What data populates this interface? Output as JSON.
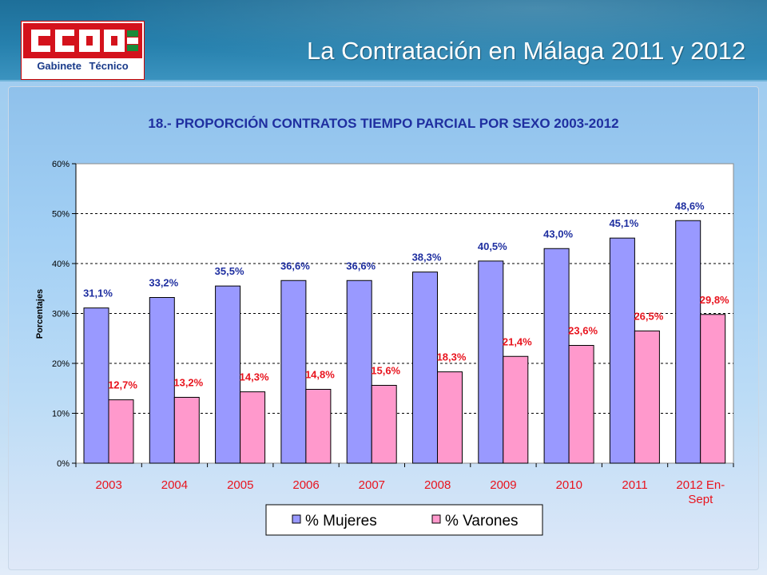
{
  "header": {
    "logo_text": "CCOO",
    "logo_subtitle": "Gabinete   Técnico",
    "title": "La Contratación en Málaga 2011 y 2012"
  },
  "colors": {
    "mujeres": "#9999ff",
    "varones": "#ff99cc",
    "mujeres_label": "#1f2fa0",
    "varones_label": "#e8141e",
    "chart_title": "#1f2fa0",
    "category_label": "#e8141e",
    "logo_red": "#d4121c",
    "logo_green": "#1a8a3a"
  },
  "chart_data": {
    "type": "bar",
    "title": "18.- PROPORCIÓN  CONTRATOS  TIEMPO PARCIAL POR SEXO 2003-2012",
    "ylabel": "Porcentajes",
    "xlabel": "",
    "ylim": [
      0,
      60
    ],
    "yticks": [
      "0%",
      "10%",
      "20%",
      "30%",
      "40%",
      "50%",
      "60%"
    ],
    "grid": true,
    "legend_position": "bottom-center",
    "categories": [
      "2003",
      "2004",
      "2005",
      "2006",
      "2007",
      "2008",
      "2009",
      "2010",
      "2011",
      "2012 En-Sept"
    ],
    "category_lines": [
      [
        "2003"
      ],
      [
        "2004"
      ],
      [
        "2005"
      ],
      [
        "2006"
      ],
      [
        "2007"
      ],
      [
        "2008"
      ],
      [
        "2009"
      ],
      [
        "2010"
      ],
      [
        "2011"
      ],
      [
        "2012 En-",
        "Sept"
      ]
    ],
    "series": [
      {
        "name": "% Mujeres",
        "values": [
          31.1,
          33.2,
          35.5,
          36.6,
          36.6,
          38.3,
          40.5,
          43.0,
          45.1,
          48.6
        ],
        "labels": [
          "31,1%",
          "33,2%",
          "35,5%",
          "36,6%",
          "36,6%",
          "38,3%",
          "40,5%",
          "43,0%",
          "45,1%",
          "48,6%"
        ]
      },
      {
        "name": "% Varones",
        "values": [
          12.7,
          13.2,
          14.3,
          14.8,
          15.6,
          18.3,
          21.4,
          23.6,
          26.5,
          29.8
        ],
        "labels": [
          "12,7%",
          "13,2%",
          "14,3%",
          "14,8%",
          "15,6%",
          "18,3%",
          "21,4%",
          "23,6%",
          "26,5%",
          "29,8%"
        ]
      }
    ]
  }
}
